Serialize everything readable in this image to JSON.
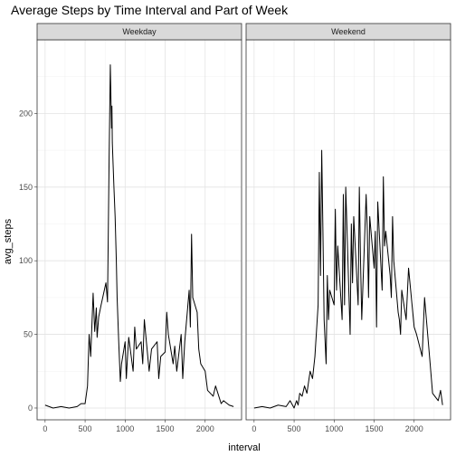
{
  "chart_data": {
    "type": "line",
    "title": "Average Steps by Time Interval and Part of Week",
    "xlabel": "interval",
    "ylabel": "avg_steps",
    "xlim": [
      -100,
      2455
    ],
    "ylim": [
      -8,
      250
    ],
    "x_ticks": [
      0,
      500,
      1000,
      1500,
      2000
    ],
    "y_ticks": [
      0,
      50,
      100,
      150,
      200
    ],
    "grid": true,
    "facets": [
      {
        "name": "Weekday",
        "x": [
          0,
          100,
          200,
          300,
          400,
          450,
          500,
          530,
          550,
          570,
          600,
          620,
          640,
          650,
          670,
          700,
          720,
          740,
          760,
          780,
          800,
          815,
          830,
          835,
          840,
          850,
          860,
          875,
          890,
          900,
          920,
          940,
          955,
          1000,
          1015,
          1030,
          1045,
          1100,
          1120,
          1140,
          1200,
          1220,
          1240,
          1300,
          1330,
          1400,
          1420,
          1445,
          1500,
          1520,
          1540,
          1600,
          1620,
          1645,
          1700,
          1720,
          1745,
          1800,
          1815,
          1830,
          1845,
          1900,
          1920,
          1945,
          2000,
          2030,
          2100,
          2130,
          2200,
          2230,
          2300,
          2355
        ],
        "values": [
          2,
          0,
          1,
          0,
          1,
          3,
          3,
          15,
          50,
          35,
          78,
          52,
          68,
          48,
          62,
          70,
          75,
          80,
          85,
          72,
          170,
          233,
          190,
          205,
          180,
          165,
          150,
          130,
          100,
          75,
          45,
          18,
          30,
          45,
          20,
          35,
          48,
          25,
          55,
          40,
          45,
          30,
          60,
          25,
          40,
          45,
          20,
          35,
          38,
          65,
          50,
          30,
          42,
          25,
          50,
          20,
          45,
          80,
          55,
          118,
          75,
          65,
          40,
          30,
          25,
          12,
          8,
          15,
          3,
          5,
          2,
          1
        ]
      },
      {
        "name": "Weekend",
        "x": [
          0,
          100,
          200,
          300,
          400,
          450,
          500,
          530,
          550,
          570,
          600,
          630,
          660,
          700,
          730,
          760,
          800,
          815,
          830,
          845,
          860,
          875,
          900,
          915,
          930,
          945,
          1000,
          1015,
          1030,
          1045,
          1100,
          1115,
          1130,
          1145,
          1200,
          1215,
          1230,
          1245,
          1300,
          1315,
          1330,
          1345,
          1400,
          1415,
          1430,
          1445,
          1500,
          1515,
          1530,
          1545,
          1600,
          1615,
          1630,
          1645,
          1700,
          1715,
          1730,
          1745,
          1800,
          1815,
          1830,
          1845,
          1900,
          1930,
          2000,
          2030,
          2100,
          2130,
          2200,
          2230,
          2300,
          2330,
          2355
        ],
        "values": [
          0,
          1,
          0,
          2,
          1,
          5,
          0,
          5,
          2,
          10,
          8,
          15,
          10,
          25,
          20,
          35,
          70,
          160,
          90,
          175,
          120,
          60,
          30,
          90,
          60,
          80,
          70,
          135,
          80,
          110,
          60,
          145,
          70,
          150,
          50,
          125,
          85,
          130,
          70,
          150,
          100,
          60,
          145,
          120,
          75,
          130,
          95,
          120,
          55,
          140,
          80,
          157,
          110,
          120,
          90,
          75,
          130,
          100,
          65,
          60,
          50,
          80,
          60,
          95,
          55,
          50,
          35,
          75,
          30,
          10,
          5,
          12,
          2
        ]
      }
    ]
  }
}
